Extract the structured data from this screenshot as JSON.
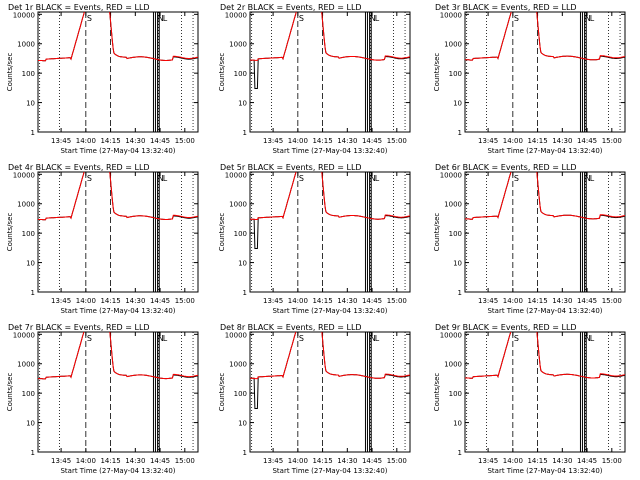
{
  "chart_data": [
    {
      "type": "line",
      "title": "Det 1r BLACK = Events, RED = LLD"
    },
    {
      "type": "line",
      "title": "Det 2r BLACK = Events, RED = LLD"
    },
    {
      "type": "line",
      "title": "Det 3r BLACK = Events, RED = LLD"
    },
    {
      "type": "line",
      "title": "Det 4r BLACK = Events, RED = LLD"
    },
    {
      "type": "line",
      "title": "Det 5r BLACK = Events, RED = LLD"
    },
    {
      "type": "line",
      "title": "Det 6r BLACK = Events, RED = LLD"
    },
    {
      "type": "line",
      "title": "Det 7r BLACK = Events, RED = LLD"
    },
    {
      "type": "line",
      "title": "Det 8r BLACK = Events, RED = LLD"
    },
    {
      "type": "line",
      "title": "Det 9r BLACK = Events, RED = LLD"
    }
  ],
  "shared": {
    "xlabel": "Start Time (27-May-04 13:32:40)",
    "ylabel": "Counts/sec",
    "yscale": "log",
    "ylim": [
      1,
      12000
    ],
    "xlim_min": [
      -2,
      95
    ],
    "x_tick_minutes": [
      12,
      27,
      42,
      57,
      72,
      87
    ],
    "x_tick_labels": [
      "13:45",
      "14:00",
      "14:15",
      "14:30",
      "14:45",
      "15:00"
    ],
    "y_ticks": [
      1,
      10,
      100,
      1000,
      10000
    ],
    "y_tick_labels": [
      "1",
      "10",
      "100",
      "1000",
      "10000"
    ],
    "dotted_lines_min": [
      -1,
      11,
      71,
      85,
      92
    ],
    "dashed_lines_min": [
      27,
      42
    ],
    "solid_lines_min": [
      68,
      69.2,
      70.5,
      71.5
    ],
    "markers": [
      {
        "label": "S",
        "minute": 27
      },
      {
        "label": "N",
        "minute": 70
      },
      {
        "label": "L",
        "minute": 73
      }
    ],
    "colors": {
      "events": "#000000",
      "lld": "#ff0000",
      "background": "#ffffff"
    },
    "series_names": [
      "Events",
      "LLD"
    ]
  }
}
